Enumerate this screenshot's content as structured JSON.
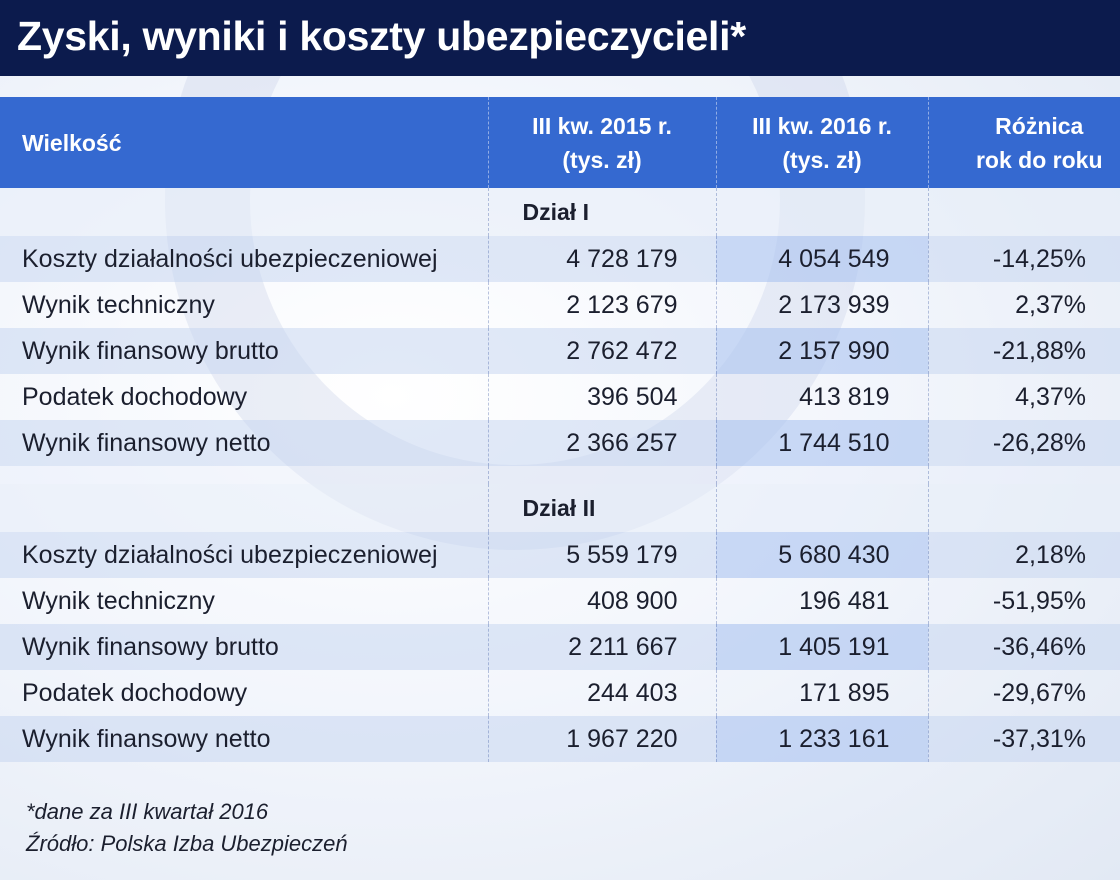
{
  "title": "Zyski, wyniki i koszty ubezpieczycieli*",
  "chart_data": {
    "type": "table",
    "title": "Zyski, wyniki i koszty ubezpieczycieli*",
    "columns": [
      "Wielkość",
      "III kw. 2015 r. (tys. zł)",
      "III kw. 2016 r. (tys. zł)",
      "Różnica rok do roku"
    ],
    "header": {
      "col1": "Wielkość",
      "col2_line1": "III kw. 2015 r.",
      "col2_line2": "(tys. zł)",
      "col3_line1": "III kw. 2016 r.",
      "col3_line2": "(tys. zł)",
      "col4_line1": "Różnica",
      "col4_line2": "rok do roku"
    },
    "sections": [
      {
        "name": "Dział I",
        "rows": [
          {
            "label": "Koszty działalności ubezpieczeniowej",
            "v2015": "4 728 179",
            "v2016": "4 054 549",
            "diff": "-14,25%"
          },
          {
            "label": "Wynik techniczny",
            "v2015": "2 123 679",
            "v2016": "2 173 939",
            "diff": "2,37%"
          },
          {
            "label": "Wynik finansowy brutto",
            "v2015": "2 762 472",
            "v2016": "2 157 990",
            "diff": "-21,88%"
          },
          {
            "label": "Podatek dochodowy",
            "v2015": "396 504",
            "v2016": "413 819",
            "diff": "4,37%"
          },
          {
            "label": "Wynik finansowy netto",
            "v2015": "2 366 257",
            "v2016": "1 744 510",
            "diff": "-26,28%"
          }
        ]
      },
      {
        "name": "Dział II",
        "rows": [
          {
            "label": "Koszty działalności ubezpieczeniowej",
            "v2015": "5 559 179",
            "v2016": "5 680 430",
            "diff": "2,18%"
          },
          {
            "label": "Wynik techniczny",
            "v2015": "408 900",
            "v2016": "196 481",
            "diff": "-51,95%"
          },
          {
            "label": "Wynik finansowy brutto",
            "v2015": "2 211 667",
            "v2016": "1 405 191",
            "diff": "-36,46%"
          },
          {
            "label": "Podatek dochodowy",
            "v2015": "244 403",
            "v2016": "171 895",
            "diff": "-29,67%"
          },
          {
            "label": "Wynik finansowy netto",
            "v2015": "1 967 220",
            "v2016": "1 233 161",
            "diff": "-37,31%"
          }
        ]
      }
    ]
  },
  "footnotes": {
    "note": "*dane za III kwartał 2016",
    "source": "Źródło: Polska Izba Ubezpieczeń"
  },
  "colors": {
    "title_bar": "#0c1b4d",
    "header_bg": "#3569d0",
    "band": "#c3d3f0"
  }
}
